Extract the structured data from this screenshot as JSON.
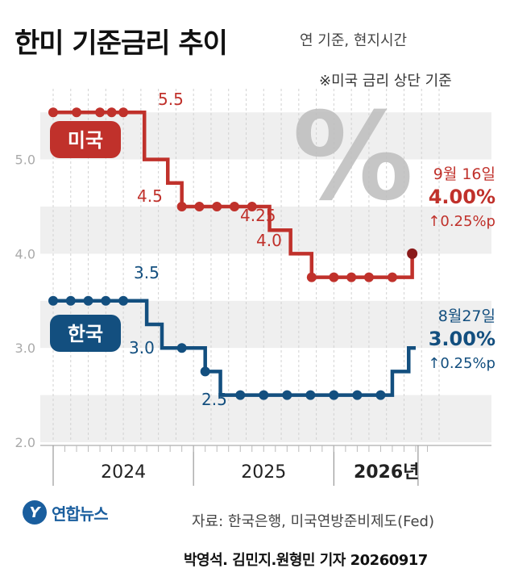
{
  "header": {
    "title": "한미 기준금리 추이",
    "subtitle": "연 기준, 현지시간",
    "note": "※미국 금리 상단 기준"
  },
  "footer": {
    "source": "자료: 한국은행, 미국연방준비제도(Fed)",
    "credit": "박영석. 김민지.원형민 기자 20260917",
    "logo_text": "연합뉴스"
  },
  "decoration": {
    "percent_symbol": "%"
  },
  "chart_data": {
    "type": "line",
    "title": "한미 기준금리 추이",
    "ylim": [
      2.0,
      5.75
    ],
    "yticks": [
      2.0,
      3.0,
      4.0,
      5.0
    ],
    "ytick_labels": [
      "2.0",
      "3.0",
      "4.0",
      "5.0"
    ],
    "x_periods": [
      {
        "label": "2024",
        "start": 0,
        "end": 12
      },
      {
        "label": "2025",
        "start": 12,
        "end": 24
      },
      {
        "label": "2026년",
        "start": 24,
        "end": 33
      }
    ],
    "grid": true,
    "series": [
      {
        "name": "미국",
        "color": "#c0312b",
        "label_side": "left",
        "values": [
          {
            "x": 0,
            "y": 5.5,
            "marker": true
          },
          {
            "x": 2,
            "y": 5.5,
            "marker": true
          },
          {
            "x": 4,
            "y": 5.5,
            "marker": true
          },
          {
            "x": 5,
            "y": 5.5,
            "marker": true
          },
          {
            "x": 6,
            "y": 5.5,
            "marker": true
          },
          {
            "x": 7.8,
            "y": 5.5,
            "marker": false
          },
          {
            "x": 7.8,
            "y": 5.0,
            "marker": false
          },
          {
            "x": 9.8,
            "y": 5.0,
            "marker": false
          },
          {
            "x": 9.8,
            "y": 4.75,
            "marker": false
          },
          {
            "x": 11,
            "y": 4.75,
            "marker": false
          },
          {
            "x": 11,
            "y": 4.5,
            "marker": true
          },
          {
            "x": 12.5,
            "y": 4.5,
            "marker": true
          },
          {
            "x": 14,
            "y": 4.5,
            "marker": true
          },
          {
            "x": 15.5,
            "y": 4.5,
            "marker": true
          },
          {
            "x": 17,
            "y": 4.5,
            "marker": true
          },
          {
            "x": 18.5,
            "y": 4.5,
            "marker": false
          },
          {
            "x": 18.5,
            "y": 4.25,
            "marker": false
          },
          {
            "x": 20.3,
            "y": 4.25,
            "marker": false
          },
          {
            "x": 20.3,
            "y": 4.0,
            "marker": false
          },
          {
            "x": 22.1,
            "y": 4.0,
            "marker": false
          },
          {
            "x": 22.1,
            "y": 3.75,
            "marker": true
          },
          {
            "x": 24,
            "y": 3.75,
            "marker": true
          },
          {
            "x": 25.5,
            "y": 3.75,
            "marker": true
          },
          {
            "x": 27,
            "y": 3.75,
            "marker": true
          },
          {
            "x": 29,
            "y": 3.75,
            "marker": true
          },
          {
            "x": 30.7,
            "y": 3.75,
            "marker": false
          },
          {
            "x": 30.7,
            "y": 4.0,
            "marker": true,
            "latest": true
          }
        ],
        "annotations": [
          "5.5",
          "4.5",
          "4.25",
          "4.0"
        ],
        "latest": {
          "date": "9월 16일",
          "value": "4.00%",
          "change": "↑0.25%p"
        }
      },
      {
        "name": "한국",
        "color": "#134f7f",
        "label_side": "left",
        "values": [
          {
            "x": 0,
            "y": 3.5,
            "marker": true
          },
          {
            "x": 1.5,
            "y": 3.5,
            "marker": true
          },
          {
            "x": 3,
            "y": 3.5,
            "marker": true
          },
          {
            "x": 4.5,
            "y": 3.5,
            "marker": true
          },
          {
            "x": 6,
            "y": 3.5,
            "marker": true
          },
          {
            "x": 8,
            "y": 3.5,
            "marker": false
          },
          {
            "x": 8,
            "y": 3.25,
            "marker": false
          },
          {
            "x": 9.3,
            "y": 3.25,
            "marker": false
          },
          {
            "x": 9.3,
            "y": 3.0,
            "marker": false
          },
          {
            "x": 11,
            "y": 3.0,
            "marker": true
          },
          {
            "x": 13,
            "y": 3.0,
            "marker": false
          },
          {
            "x": 13,
            "y": 2.75,
            "marker": true
          },
          {
            "x": 14.3,
            "y": 2.75,
            "marker": false
          },
          {
            "x": 14.3,
            "y": 2.5,
            "marker": false
          },
          {
            "x": 16,
            "y": 2.5,
            "marker": true
          },
          {
            "x": 18,
            "y": 2.5,
            "marker": true
          },
          {
            "x": 20,
            "y": 2.5,
            "marker": true
          },
          {
            "x": 22,
            "y": 2.5,
            "marker": true
          },
          {
            "x": 24,
            "y": 2.5,
            "marker": true
          },
          {
            "x": 26,
            "y": 2.5,
            "marker": true
          },
          {
            "x": 28,
            "y": 2.5,
            "marker": true
          },
          {
            "x": 29,
            "y": 2.5,
            "marker": false
          },
          {
            "x": 29,
            "y": 2.75,
            "marker": false
          },
          {
            "x": 30.4,
            "y": 2.75,
            "marker": false
          },
          {
            "x": 30.4,
            "y": 3.0,
            "marker": false
          },
          {
            "x": 31,
            "y": 3.0,
            "marker": false
          }
        ],
        "annotations": [
          "3.5",
          "3.0",
          "2.5"
        ],
        "latest": {
          "date": "8월27일",
          "value": "3.00%",
          "change": "↑0.25%p"
        }
      }
    ]
  }
}
